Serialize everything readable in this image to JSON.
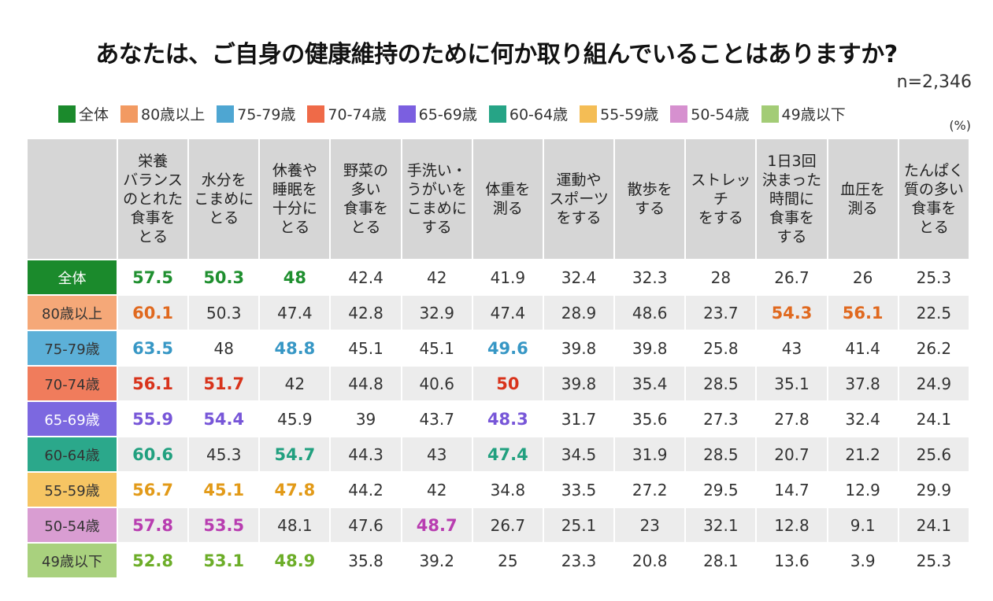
{
  "title": "あなたは、ご自身の健康維持のために何か取り組んでいることはありますか?",
  "sample": "n=2,346",
  "unit": "(%)",
  "legend": [
    {
      "label": "全体",
      "color": "#1b8a2c"
    },
    {
      "label": "80歳以上",
      "color": "#f29a62"
    },
    {
      "label": "75-79歳",
      "color": "#4ea6d2"
    },
    {
      "label": "70-74歳",
      "color": "#ef6a48"
    },
    {
      "label": "65-69歳",
      "color": "#7b5fe0"
    },
    {
      "label": "60-64歳",
      "color": "#26a486"
    },
    {
      "label": "55-59歳",
      "color": "#f4bd55"
    },
    {
      "label": "50-54歳",
      "color": "#d690cf"
    },
    {
      "label": "49歳以下",
      "color": "#a3cc76"
    }
  ],
  "table": {
    "columns": [
      "栄養\nバランス\nのとれた\n食事を\nとる",
      "水分を\nこまめに\nとる",
      "休養や\n睡眠を\n十分に\nとる",
      "野菜の\n多い\n食事を\nとる",
      "手洗い・\nうがいを\nこまめに\nする",
      "体重を\n測る",
      "運動や\nスポーツ\nをする",
      "散歩を\nする",
      "ストレッチ\nをする",
      "1日3回\n決まった\n時間に\n食事を\nする",
      "血圧を\n測る",
      "たんぱく\n質の多い\n食事を\nとる"
    ],
    "rows": [
      {
        "label": "全体",
        "label_bg": "#1b8a2c",
        "label_color": "#ffffff",
        "highlight_color": "#1f8f2f",
        "highlight": [
          0,
          1,
          2
        ],
        "values": [
          57.5,
          50.3,
          48,
          42.4,
          42,
          41.9,
          32.4,
          32.3,
          28,
          26.7,
          26,
          25.3
        ]
      },
      {
        "label": "80歳以上",
        "label_bg": "#f5a878",
        "label_color": "#333333",
        "highlight_color": "#e0691f",
        "highlight": [
          0,
          9,
          10
        ],
        "values": [
          60.1,
          50.3,
          47.4,
          42.8,
          32.9,
          47.4,
          28.9,
          48.6,
          23.7,
          54.3,
          56.1,
          22.5
        ]
      },
      {
        "label": "75-79歳",
        "label_bg": "#5cb0d8",
        "label_color": "#333333",
        "highlight_color": "#3797c5",
        "highlight": [
          0,
          2,
          5
        ],
        "values": [
          63.5,
          48,
          48.8,
          45.1,
          45.1,
          49.6,
          39.8,
          39.8,
          25.8,
          43,
          41.4,
          26.2
        ]
      },
      {
        "label": "70-74歳",
        "label_bg": "#f07c5c",
        "label_color": "#333333",
        "highlight_color": "#d8331b",
        "highlight": [
          0,
          1,
          5
        ],
        "values": [
          56.1,
          51.7,
          42,
          44.8,
          40.6,
          50,
          39.8,
          35.4,
          28.5,
          35.1,
          37.8,
          24.9
        ]
      },
      {
        "label": "65-69歳",
        "label_bg": "#7c68e0",
        "label_color": "#ffffff",
        "highlight_color": "#7756d8",
        "highlight": [
          0,
          1,
          5
        ],
        "values": [
          55.9,
          54.4,
          45.9,
          39,
          43.7,
          48.3,
          31.7,
          35.6,
          27.3,
          27.8,
          32.4,
          24.1
        ]
      },
      {
        "label": "60-64歳",
        "label_bg": "#2ba88b",
        "label_color": "#333333",
        "highlight_color": "#21a07f",
        "highlight": [
          0,
          2,
          5
        ],
        "values": [
          60.6,
          45.3,
          54.7,
          44.3,
          43,
          47.4,
          34.5,
          31.9,
          28.5,
          20.7,
          21.2,
          25.6
        ]
      },
      {
        "label": "55-59歳",
        "label_bg": "#f6c563",
        "label_color": "#333333",
        "highlight_color": "#e29a18",
        "highlight": [
          0,
          1,
          2
        ],
        "values": [
          56.7,
          45.1,
          47.8,
          44.2,
          42,
          34.8,
          33.5,
          27.2,
          29.5,
          14.7,
          12.9,
          29.9
        ]
      },
      {
        "label": "50-54歳",
        "label_bg": "#d99dd2",
        "label_color": "#333333",
        "highlight_color": "#b83db0",
        "highlight": [
          0,
          1,
          4
        ],
        "values": [
          57.8,
          53.5,
          48.1,
          47.6,
          48.7,
          26.7,
          25.1,
          23,
          32.1,
          12.8,
          9.1,
          24.1
        ]
      },
      {
        "label": "49歳以下",
        "label_bg": "#a9d17e",
        "label_color": "#333333",
        "highlight_color": "#6cad28",
        "highlight": [
          0,
          1,
          2
        ],
        "values": [
          52.8,
          53.1,
          48.9,
          35.8,
          39.2,
          25,
          23.3,
          20.8,
          28.1,
          13.6,
          3.9,
          25.3
        ]
      }
    ]
  }
}
